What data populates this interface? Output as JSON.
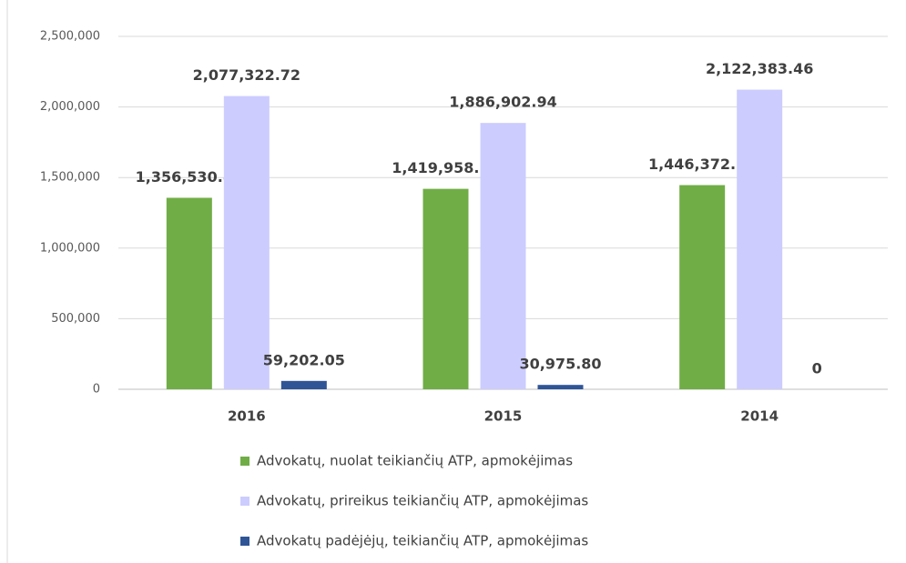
{
  "chart_data": {
    "type": "bar",
    "categories": [
      "2016",
      "2015",
      "2014"
    ],
    "series": [
      {
        "name": "Advokatų, nuolat teikiančių ATP, apmokėjimas",
        "color": "#70ad47",
        "values": [
          1356530.87,
          1419958.15,
          1446372.1
        ],
        "value_labels": [
          "1,356,530.87",
          "1,419,958.15",
          "1,446,372.10"
        ]
      },
      {
        "name": "Advokatų, prireikus teikiančių ATP, apmokėjimas",
        "color": "#ccccff",
        "values": [
          2077322.72,
          1886902.94,
          2122383.46
        ],
        "value_labels": [
          "2,077,322.72",
          "1,886,902.94",
          "2,122,383.46"
        ]
      },
      {
        "name": "Advokatų padėjėjų, teikiančių ATP, apmokėjimas",
        "color": "#2f5597",
        "values": [
          59202.05,
          30975.8,
          0
        ],
        "value_labels": [
          "59,202.05",
          "30,975.80",
          "0"
        ]
      }
    ],
    "ylim": [
      0,
      2500000
    ],
    "yticks": [
      0,
      {
        "value": 500000,
        "label": "500,000"
      },
      {
        "value": 1000000,
        "label": "1,000,000"
      },
      {
        "value": 1500000,
        "label": "1,500,000"
      },
      {
        "value": 2000000,
        "label": "2,000,000"
      },
      {
        "value": 2500000,
        "label": "2,500,000"
      }
    ],
    "grid": true
  }
}
